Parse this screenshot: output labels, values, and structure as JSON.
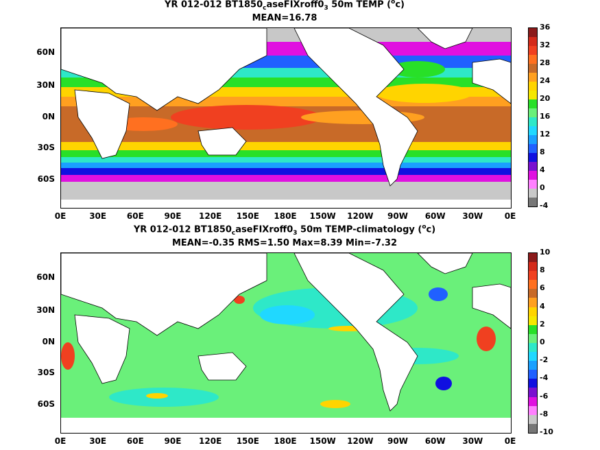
{
  "panel1": {
    "title_line1_pre": "YR 012-012 BT1850",
    "title_sub1": "c",
    "title_mid": "aseFIXroff0",
    "title_sub2": "3",
    "title_post": " 50m TEMP (",
    "title_sup": "o",
    "title_end": "c)",
    "title_line2": "MEAN=16.78",
    "colorbar_ticks": [
      "36",
      "32",
      "28",
      "24",
      "20",
      "16",
      "12",
      "8",
      "4",
      "0",
      "-4"
    ],
    "colorbar_colors": [
      "#8b1a1a",
      "#d42a1a",
      "#f04020",
      "#ff7020",
      "#c86a28",
      "#ffa020",
      "#ffd400",
      "#f5e800",
      "#28e028",
      "#6af07a",
      "#2ee8c8",
      "#20d8ff",
      "#1aa0ff",
      "#2060ff",
      "#1010e0",
      "#7a10d0",
      "#e010e0",
      "#ff80ff",
      "#c8c8c8",
      "#777777"
    ]
  },
  "panel2": {
    "title_line1_pre": "YR 012-012 BT1850",
    "title_sub1": "c",
    "title_mid": "aseFIXroff0",
    "title_sub2": "3",
    "title_post": " 50m TEMP-climatology (",
    "title_sup": "o",
    "title_end": "c)",
    "title_line2": "MEAN=-0.35   RMS=1.50   Max=8.39   Min=-7.32",
    "colorbar_ticks": [
      "10",
      "8",
      "6",
      "4",
      "2",
      "0",
      "-2",
      "-4",
      "-6",
      "-8",
      "-10"
    ],
    "colorbar_colors": [
      "#8b1a1a",
      "#d42a1a",
      "#f04020",
      "#ff7020",
      "#c86a28",
      "#ffa020",
      "#ffd400",
      "#f5e800",
      "#28e028",
      "#6af07a",
      "#2ee8c8",
      "#20d8ff",
      "#1aa0ff",
      "#2060ff",
      "#1010e0",
      "#7a10d0",
      "#e010e0",
      "#ff80ff",
      "#c8c8c8",
      "#777777"
    ]
  },
  "lat_labels": [
    "60N",
    "30N",
    "0N",
    "30S",
    "60S"
  ],
  "lon_labels": [
    "0E",
    "30E",
    "60E",
    "90E",
    "120E",
    "150E",
    "180E",
    "150W",
    "120W",
    "90W",
    "60W",
    "30W",
    "0E"
  ]
}
